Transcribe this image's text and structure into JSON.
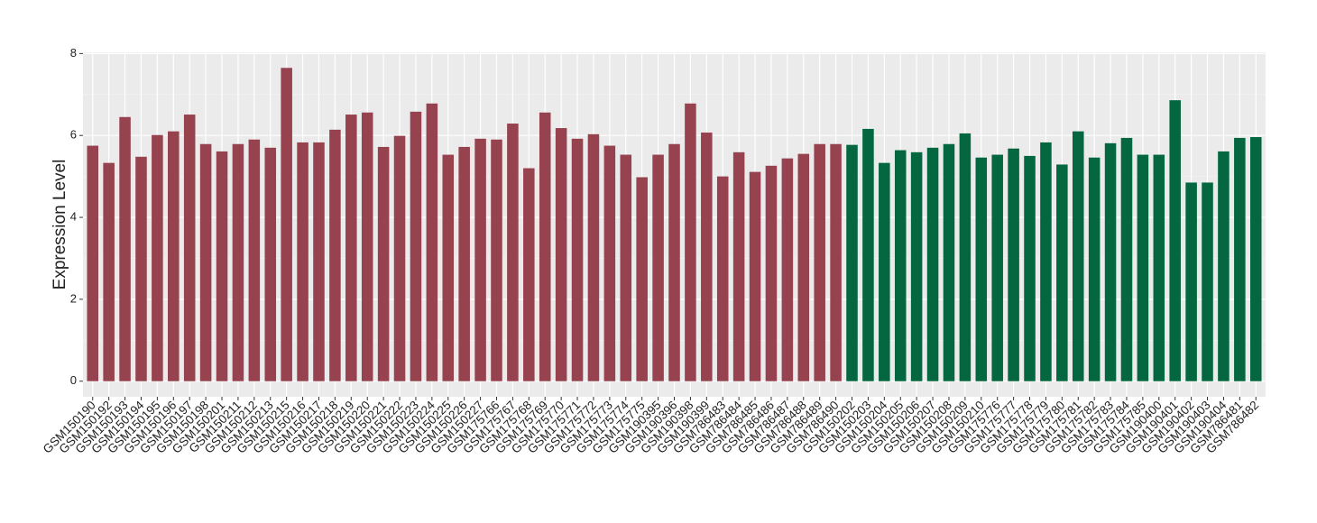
{
  "chart_data": {
    "type": "bar",
    "y_label": "Expression Level",
    "categories": [
      "GSM150190",
      "GSM150192",
      "GSM150193",
      "GSM150194",
      "GSM150195",
      "GSM150196",
      "GSM150197",
      "GSM150198",
      "GSM150201",
      "GSM150211",
      "GSM150212",
      "GSM150213",
      "GSM150215",
      "GSM150216",
      "GSM150217",
      "GSM150218",
      "GSM150219",
      "GSM150220",
      "GSM150221",
      "GSM150222",
      "GSM150223",
      "GSM150224",
      "GSM150225",
      "GSM150226",
      "GSM150227",
      "GSM175766",
      "GSM175767",
      "GSM175768",
      "GSM175769",
      "GSM175770",
      "GSM175771",
      "GSM175772",
      "GSM175773",
      "GSM175774",
      "GSM175775",
      "GSM190395",
      "GSM190396",
      "GSM190398",
      "GSM190399",
      "GSM786483",
      "GSM786484",
      "GSM786485",
      "GSM786486",
      "GSM786487",
      "GSM786488",
      "GSM786489",
      "GSM786490",
      "GSM150202",
      "GSM150203",
      "GSM150204",
      "GSM150205",
      "GSM150206",
      "GSM150207",
      "GSM150208",
      "GSM150209",
      "GSM150210",
      "GSM175776",
      "GSM175777",
      "GSM175778",
      "GSM175779",
      "GSM175780",
      "GSM175781",
      "GSM175782",
      "GSM175783",
      "GSM175784",
      "GSM175785",
      "GSM190400",
      "GSM190401",
      "GSM190402",
      "GSM190403",
      "GSM190404",
      "GSM786481",
      "GSM786482"
    ],
    "values": [
      5.75,
      5.33,
      6.45,
      5.48,
      6.01,
      6.1,
      6.51,
      5.79,
      5.61,
      5.79,
      5.9,
      5.7,
      7.65,
      5.83,
      5.83,
      6.14,
      6.51,
      6.56,
      5.72,
      5.99,
      6.58,
      6.78,
      5.53,
      5.72,
      5.92,
      5.9,
      6.29,
      5.2,
      6.56,
      6.18,
      5.92,
      6.03,
      5.75,
      5.53,
      4.98,
      5.53,
      5.79,
      6.78,
      6.07,
      5.0,
      5.59,
      5.11,
      5.26,
      5.44,
      5.55,
      5.79,
      5.79,
      5.77,
      6.16,
      5.33,
      5.64,
      5.59,
      5.7,
      5.79,
      6.05,
      5.46,
      5.53,
      5.68,
      5.5,
      5.83,
      5.29,
      6.1,
      5.46,
      5.81,
      5.94,
      5.53,
      5.53,
      6.86,
      4.85,
      4.85,
      5.61,
      5.94,
      5.96
    ],
    "colors": [
      "#96434f",
      "#96434f",
      "#96434f",
      "#96434f",
      "#96434f",
      "#96434f",
      "#96434f",
      "#96434f",
      "#96434f",
      "#96434f",
      "#96434f",
      "#96434f",
      "#96434f",
      "#96434f",
      "#96434f",
      "#96434f",
      "#96434f",
      "#96434f",
      "#96434f",
      "#96434f",
      "#96434f",
      "#96434f",
      "#96434f",
      "#96434f",
      "#96434f",
      "#96434f",
      "#96434f",
      "#96434f",
      "#96434f",
      "#96434f",
      "#96434f",
      "#96434f",
      "#96434f",
      "#96434f",
      "#96434f",
      "#96434f",
      "#96434f",
      "#96434f",
      "#96434f",
      "#96434f",
      "#96434f",
      "#96434f",
      "#96434f",
      "#96434f",
      "#96434f",
      "#96434f",
      "#96434f",
      "#04673f",
      "#04673f",
      "#04673f",
      "#04673f",
      "#04673f",
      "#04673f",
      "#04673f",
      "#04673f",
      "#04673f",
      "#04673f",
      "#04673f",
      "#04673f",
      "#04673f",
      "#04673f",
      "#04673f",
      "#04673f",
      "#04673f",
      "#04673f",
      "#04673f",
      "#04673f",
      "#04673f",
      "#04673f",
      "#04673f",
      "#04673f",
      "#04673f",
      "#04673f"
    ],
    "ylim": [
      -0.38,
      8.03
    ],
    "yticks": [
      0,
      2,
      4,
      6,
      8
    ],
    "grid": true
  }
}
